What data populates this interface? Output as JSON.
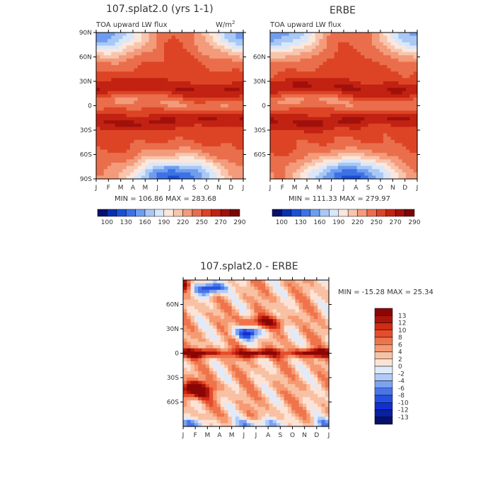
{
  "colors": {
    "flux_scale": [
      "#08106e",
      "#0a2fb0",
      "#1a4fd8",
      "#3d72e6",
      "#6e9df0",
      "#a9c8f5",
      "#d9e7fb",
      "#fbe7dc",
      "#f8c5ad",
      "#f39b7a",
      "#ea6e4c",
      "#dd4425",
      "#c22212",
      "#a1100a",
      "#7b0505"
    ],
    "diff_scale": [
      "#07106a",
      "#0a1fa4",
      "#1230cc",
      "#2651e0",
      "#4876ea",
      "#7ca2f2",
      "#b0cbf6",
      "#dfeafb",
      "#fce3d6",
      "#f9c1a3",
      "#f59a72",
      "#ef744c",
      "#e44d2c",
      "#cf2b15",
      "#ad1409",
      "#8a0606"
    ]
  },
  "chart_data": [
    {
      "type": "heatmap",
      "title": "107.splat2.0 (yrs 1-1)",
      "subtitle": "TOA upward LW flux",
      "units": "W/m",
      "units_sup": "2",
      "x_ticks": [
        "J",
        "F",
        "M",
        "A",
        "M",
        "J",
        "J",
        "A",
        "S",
        "O",
        "N",
        "D",
        "J"
      ],
      "y_ticks": [
        "90N",
        "60N",
        "30N",
        "0",
        "30S",
        "60S",
        "90S"
      ],
      "stats": "MIN = 106.86 MAX = 283.68",
      "colorbar_labels": [
        "100",
        "130",
        "160",
        "190",
        "220",
        "250",
        "270",
        "290"
      ],
      "zmin": 106.86,
      "zmax": 283.68
    },
    {
      "type": "heatmap",
      "title": "ERBE",
      "subtitle": "TOA upward LW flux",
      "x_ticks": [
        "J",
        "F",
        "M",
        "A",
        "M",
        "J",
        "J",
        "A",
        "S",
        "O",
        "N",
        "D",
        "J"
      ],
      "y_ticks": [
        "60N",
        "30N",
        "0",
        "30S",
        "60S"
      ],
      "stats": "MIN = 111.33 MAX = 279.97",
      "colorbar_labels": [
        "100",
        "130",
        "160",
        "190",
        "220",
        "250",
        "270",
        "290"
      ],
      "zmin": 111.33,
      "zmax": 279.97
    },
    {
      "type": "heatmap",
      "title": "107.splat2.0 - ERBE",
      "x_ticks": [
        "J",
        "F",
        "M",
        "A",
        "M",
        "J",
        "J",
        "A",
        "S",
        "O",
        "N",
        "D",
        "J"
      ],
      "y_ticks": [
        "60N",
        "30N",
        "0",
        "30S",
        "60S"
      ],
      "stats": "MIN = -15.28 MAX =  25.34",
      "colorbar_labels": [
        "13",
        "12",
        "10",
        "8",
        "6",
        "4",
        "2",
        "0",
        "-2",
        "-4",
        "-6",
        "-8",
        "-10",
        "-12",
        "-13"
      ],
      "zmin": -15.28,
      "zmax": 25.34
    }
  ]
}
